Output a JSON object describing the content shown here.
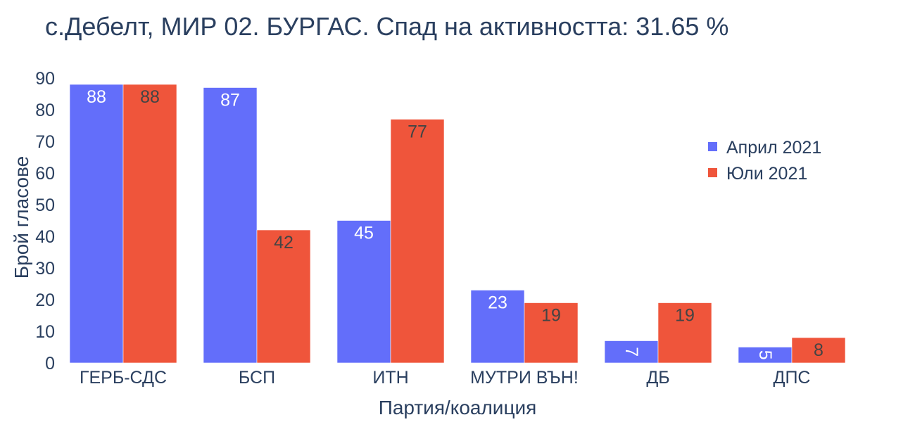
{
  "chart_data": {
    "type": "bar",
    "title": "с.Дебелт, МИР 02. БУРГАС. Спад на активността: 31.65 %",
    "xlabel": "Партия/коалиция",
    "ylabel": "Брой гласове",
    "categories": [
      "ГЕРБ-СДС",
      "БСП",
      "ИТН",
      "МУТРИ ВЪН!",
      "ДБ",
      "ДПС"
    ],
    "series": [
      {
        "name": "Април 2021",
        "color": "#636efa",
        "label_color": "#ffffff",
        "values": [
          88,
          87,
          45,
          23,
          7,
          5
        ]
      },
      {
        "name": "Юли 2021",
        "color": "#ef553b",
        "label_color": "#444444",
        "values": [
          88,
          42,
          77,
          19,
          19,
          8
        ]
      }
    ],
    "ylim": [
      0,
      90
    ],
    "yticks": [
      0,
      10,
      20,
      30,
      40,
      50,
      60,
      70,
      80,
      90
    ],
    "grid": false,
    "legend_position": "top-right"
  }
}
